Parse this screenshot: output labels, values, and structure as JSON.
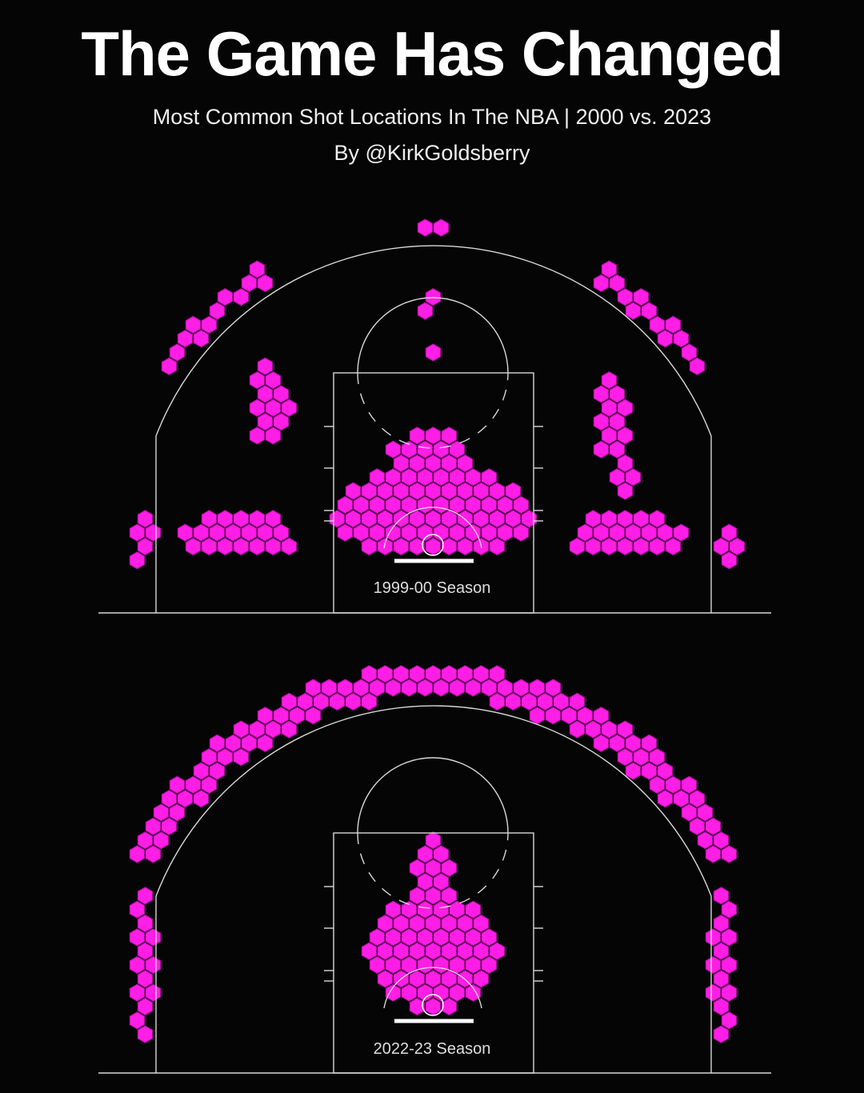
{
  "header": {
    "title": "The Game Has Changed",
    "subtitle": "Most Common Shot Locations In The NBA | 2000 vs. 2023",
    "byline": "By @KirkGoldsberry"
  },
  "colors": {
    "hex": "#ff1ee6",
    "lines": "#d8d8d8",
    "background": "#050505"
  },
  "chart_data": [
    {
      "type": "hexbin",
      "units": "feet from basket (x across court, y out from basket)",
      "label": "1999-00 Season",
      "clusters": [
        {
          "type": "ellipse",
          "cx": 0,
          "cy": 2.6,
          "rx": 7.8,
          "ry": 3.6
        },
        {
          "type": "ellipse",
          "cx": 0,
          "cy": 6,
          "rx": 3.6,
          "ry": 3.8
        },
        {
          "type": "ellipse",
          "cx": -15.4,
          "cy": 0.8,
          "rx": 4.6,
          "ry": 1.9
        },
        {
          "type": "ellipse",
          "cx": 15.4,
          "cy": 0.8,
          "rx": 4.6,
          "ry": 1.9
        },
        {
          "type": "ellipse",
          "cx": -23.0,
          "cy": 0.6,
          "rx": 0.8,
          "ry": 2.8
        },
        {
          "type": "ellipse",
          "cx": 23.4,
          "cy": 0.2,
          "rx": 0.9,
          "ry": 2.0
        },
        {
          "type": "arc",
          "r0": 24.6,
          "r1": 26.2,
          "a0": -56,
          "a1": -32
        },
        {
          "type": "arc",
          "r0": 24.6,
          "r1": 26.2,
          "a0": 31,
          "a1": 56
        },
        {
          "type": "ellipse",
          "cx": 0.2,
          "cy": 25.2,
          "rx": 1.2,
          "ry": 0.9
        },
        {
          "type": "ellipse",
          "cx": -13,
          "cy": 11.5,
          "rx": 1.6,
          "ry": 3.4
        },
        {
          "type": "ellipse",
          "cx": 14.2,
          "cy": 10.5,
          "rx": 1.4,
          "ry": 3.6
        },
        {
          "type": "ellipse",
          "cx": 15.3,
          "cy": 5.8,
          "rx": 0.8,
          "ry": 1.6
        },
        {
          "type": "ellipse",
          "cx": -0.4,
          "cy": 19.3,
          "rx": 0.6,
          "ry": 1.0
        },
        {
          "type": "ellipse",
          "cx": 0.2,
          "cy": 15.5,
          "rx": 0.6,
          "ry": 0.6
        }
      ]
    },
    {
      "type": "hexbin",
      "units": "feet from basket (x across court, y out from basket)",
      "label": "2022-23 Season",
      "clusters": [
        {
          "type": "ellipse",
          "cx": 0,
          "cy": 4.3,
          "rx": 5.6,
          "ry": 4.6
        },
        {
          "type": "ellipse",
          "cx": 0,
          "cy": 10,
          "rx": 1.5,
          "ry": 4.0
        },
        {
          "type": "arc",
          "r0": 24.6,
          "r1": 27.2,
          "a0": -64,
          "a1": 64
        },
        {
          "type": "ellipse",
          "cx": -23.1,
          "cy": 3.2,
          "rx": 1.0,
          "ry": 6.0
        },
        {
          "type": "ellipse",
          "cx": 23.2,
          "cy": 3.2,
          "rx": 1.0,
          "ry": 6.0
        }
      ]
    }
  ]
}
